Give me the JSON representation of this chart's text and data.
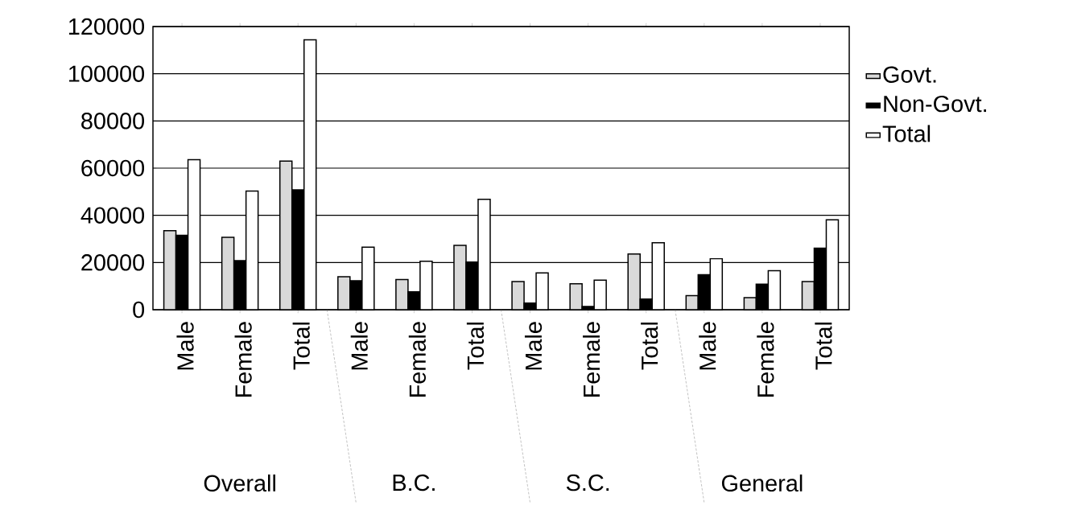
{
  "chart_data": {
    "type": "bar",
    "categories": [
      "Male",
      "Female",
      "Total",
      "Male",
      "Female",
      "Total",
      "Male",
      "Female",
      "Total",
      "Male",
      "Female",
      "Total"
    ],
    "series": [
      {
        "name": "Govt.",
        "color": "#d9d9d9",
        "values": [
          33500,
          30700,
          63000,
          14000,
          12800,
          27300,
          11900,
          11000,
          23600,
          6000,
          5100,
          11900
        ]
      },
      {
        "name": "Non-Govt.",
        "color": "#000000",
        "values": [
          31500,
          20800,
          50800,
          12300,
          7600,
          20200,
          2800,
          1400,
          4500,
          14800,
          10800,
          26100
        ]
      },
      {
        "name": "Total",
        "color": "#ffffff",
        "values": [
          63600,
          50300,
          114400,
          26500,
          20500,
          46800,
          15600,
          12500,
          28400,
          21600,
          16500,
          38100
        ]
      }
    ],
    "annotations": [
      "Overall",
      "B.C.",
      "S.C.",
      "General"
    ],
    "ylim": [
      0,
      120000
    ],
    "yticks": [
      0,
      20000,
      40000,
      60000,
      80000,
      100000,
      120000
    ],
    "grid": "y",
    "legend": "right"
  }
}
